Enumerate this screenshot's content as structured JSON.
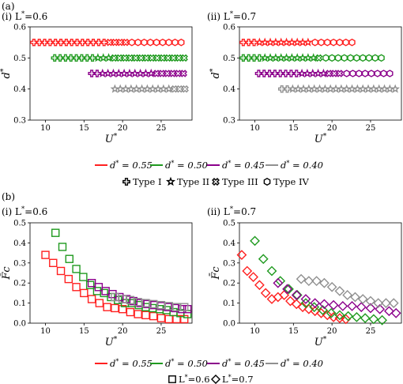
{
  "panel_labels": {
    "a": "(a)",
    "b": "(b)"
  },
  "legend_d": [
    {
      "label": "d* = 0.55",
      "color": "#ff2020"
    },
    {
      "label": "d* = 0.50",
      "color": "#1f9a1f"
    },
    {
      "label": "d* = 0.45",
      "color": "#8b008b"
    },
    {
      "label": "d* = 0.40",
      "color": "#909090"
    }
  ],
  "legend_types": [
    {
      "label": "Type I",
      "marker": "plus"
    },
    {
      "label": "Type II",
      "marker": "star"
    },
    {
      "label": "Type III",
      "marker": "x"
    },
    {
      "label": "Type IV",
      "marker": "hexagon"
    }
  ],
  "legend_L": [
    {
      "label": "L*=0.6",
      "marker": "square"
    },
    {
      "label": "L*=0.7",
      "marker": "diamond"
    }
  ],
  "chart_data": [
    {
      "id": "a-i",
      "type": "scatter",
      "title": "(i) L*=0.6",
      "xlabel": "U*",
      "ylabel": "d*",
      "xlim": [
        8,
        29
      ],
      "ylim": [
        0.3,
        0.6
      ],
      "xticks": [
        10,
        15,
        20,
        25
      ],
      "yticks": [
        0.3,
        0.4,
        0.5,
        0.6
      ],
      "series": [
        {
          "d": 0.55,
          "color": "#ff2020",
          "segments": [
            {
              "marker": "plus",
              "x": [
                8.5,
                9.2,
                9.9,
                10.6,
                11.3,
                12.0,
                12.7,
                13.4,
                14.1,
                14.8,
                15.5,
                16.2,
                16.9,
                17.6
              ]
            },
            {
              "marker": "x",
              "x": [
                18.3,
                19.0,
                19.7,
                20.4
              ]
            },
            {
              "marker": "hexagon",
              "x": [
                21.2,
                22.0,
                22.8,
                23.6,
                24.4,
                25.2,
                26.0,
                26.8,
                27.6
              ]
            }
          ]
        },
        {
          "d": 0.5,
          "color": "#1f9a1f",
          "segments": [
            {
              "marker": "plus",
              "x": [
                11.2,
                11.9,
                12.6,
                13.3,
                14.0,
                14.7,
                15.4,
                16.1
              ]
            },
            {
              "marker": "star",
              "x": [
                16.8,
                17.5,
                18.2
              ]
            },
            {
              "marker": "x",
              "x": [
                18.9,
                19.6,
                20.3,
                21.0,
                21.7,
                22.4,
                23.1,
                23.8,
                24.5,
                25.2,
                25.9,
                26.6,
                27.3,
                28.0
              ]
            }
          ]
        },
        {
          "d": 0.45,
          "color": "#8b008b",
          "segments": [
            {
              "marker": "plus",
              "x": [
                16.0,
                16.7
              ]
            },
            {
              "marker": "star",
              "x": [
                17.4,
                18.1,
                18.8,
                19.5,
                20.2,
                20.9,
                21.6,
                22.3,
                23.0,
                23.7
              ]
            },
            {
              "marker": "x",
              "x": [
                24.4,
                25.1,
                25.8,
                26.5,
                27.2,
                27.9
              ]
            }
          ]
        },
        {
          "d": 0.4,
          "color": "#909090",
          "segments": [
            {
              "marker": "star",
              "x": [
                19.0,
                19.7,
                20.4,
                21.1,
                21.8,
                22.5,
                23.2,
                23.9,
                24.6,
                25.3,
                26.0
              ]
            },
            {
              "marker": "x",
              "x": [
                26.7,
                27.4,
                28.1
              ]
            }
          ]
        }
      ]
    },
    {
      "id": "a-ii",
      "type": "scatter",
      "title": "(ii) L*=0.7",
      "xlabel": "U*",
      "ylabel": "d*",
      "xlim": [
        8,
        29
      ],
      "ylim": [
        0.3,
        0.6
      ],
      "xticks": [
        10,
        15,
        20,
        25
      ],
      "yticks": [
        0.3,
        0.4,
        0.5,
        0.6
      ],
      "series": [
        {
          "d": 0.55,
          "color": "#ff2020",
          "segments": [
            {
              "marker": "plus",
              "x": [
                8.5,
                9.2,
                9.9
              ]
            },
            {
              "marker": "star",
              "x": [
                10.6,
                11.3,
                12.0,
                12.7,
                13.4,
                14.1,
                14.8,
                15.5,
                16.2,
                16.9
              ]
            },
            {
              "marker": "hexagon",
              "x": [
                17.8,
                18.6,
                19.4,
                20.2,
                21.0,
                21.8,
                22.6
              ]
            }
          ]
        },
        {
          "d": 0.5,
          "color": "#1f9a1f",
          "segments": [
            {
              "marker": "plus",
              "x": [
                8.5,
                9.2,
                9.9,
                10.6
              ]
            },
            {
              "marker": "star",
              "x": [
                11.3,
                12.0,
                12.7,
                13.4,
                14.1,
                14.8,
                15.5,
                16.2,
                16.9,
                17.6
              ]
            },
            {
              "marker": "x",
              "x": [
                18.3
              ]
            },
            {
              "marker": "hexagon",
              "x": [
                19.2,
                20.0,
                20.8,
                21.6,
                22.4,
                23.2,
                24.0,
                24.8,
                25.6,
                26.4
              ]
            }
          ]
        },
        {
          "d": 0.45,
          "color": "#8b008b",
          "segments": [
            {
              "marker": "plus",
              "x": [
                10.5,
                11.2,
                11.9,
                12.6,
                13.3,
                14.0,
                14.7,
                15.4
              ]
            },
            {
              "marker": "star",
              "x": [
                16.1,
                16.8,
                17.5,
                18.2,
                18.9
              ]
            },
            {
              "marker": "x",
              "x": [
                19.6,
                20.3,
                21.0
              ]
            },
            {
              "marker": "hexagon",
              "x": [
                21.9,
                22.7,
                23.5,
                24.3,
                25.1,
                25.9,
                26.7,
                27.5
              ]
            }
          ]
        },
        {
          "d": 0.4,
          "color": "#909090",
          "segments": [
            {
              "marker": "plus",
              "x": [
                13.5,
                14.2
              ]
            },
            {
              "marker": "star",
              "x": [
                14.9,
                15.6,
                16.3,
                17.0,
                17.7,
                18.4,
                19.1,
                19.8,
                20.5,
                21.2,
                21.9,
                22.6,
                23.3,
                24.0,
                24.7,
                25.4,
                26.1,
                26.8,
                27.5,
                28.2
              ]
            }
          ]
        }
      ]
    },
    {
      "id": "b-i",
      "type": "scatter",
      "title": "(i) L*=0.6",
      "xlabel": "U*",
      "ylabel": "F̄c",
      "marker": "square",
      "xlim": [
        8,
        29
      ],
      "ylim": [
        0,
        0.5
      ],
      "xticks": [
        10,
        15,
        20,
        25
      ],
      "yticks": [
        0.0,
        0.1,
        0.2,
        0.3,
        0.4,
        0.5
      ],
      "series": [
        {
          "d": 0.55,
          "color": "#ff2020",
          "x": [
            10.0,
            11.0,
            12.0,
            13.0,
            14.0,
            15.0,
            16.0,
            17.0,
            18.0,
            19.0,
            20.0,
            21.0,
            22.0,
            23.0,
            24.0,
            25.0,
            26.0,
            27.0,
            28.0
          ],
          "y": [
            0.34,
            0.3,
            0.26,
            0.22,
            0.18,
            0.15,
            0.12,
            0.1,
            0.08,
            0.075,
            0.07,
            0.055,
            0.045,
            0.04,
            0.035,
            0.025,
            0.02,
            0.02,
            0.02
          ]
        },
        {
          "d": 0.5,
          "color": "#1f9a1f",
          "x": [
            11.3,
            12.2,
            13.1,
            14.0,
            14.9,
            15.8,
            16.7,
            17.6,
            18.5,
            19.4,
            20.3,
            21.2,
            22.1,
            23.0,
            23.9,
            24.8,
            25.7,
            26.6,
            27.5,
            28.4
          ],
          "y": [
            0.45,
            0.38,
            0.32,
            0.27,
            0.23,
            0.19,
            0.16,
            0.15,
            0.13,
            0.115,
            0.1,
            0.1,
            0.09,
            0.08,
            0.075,
            0.07,
            0.065,
            0.055,
            0.05,
            0.045
          ]
        },
        {
          "d": 0.45,
          "color": "#8b008b",
          "x": [
            16.0,
            16.9,
            17.8,
            18.7,
            19.6,
            20.5,
            21.4,
            22.3,
            23.2,
            24.1,
            25.0,
            25.9,
            26.8,
            27.7,
            28.4
          ],
          "y": [
            0.2,
            0.18,
            0.16,
            0.145,
            0.13,
            0.12,
            0.11,
            0.1,
            0.095,
            0.09,
            0.085,
            0.08,
            0.075,
            0.07,
            0.07
          ]
        },
        {
          "d": 0.4,
          "color": "#909090",
          "x": [
            19.0,
            20.0,
            21.0,
            22.0,
            23.0,
            24.0,
            25.0,
            26.0,
            27.0,
            28.0
          ],
          "y": [
            0.13,
            0.12,
            0.115,
            0.105,
            0.1,
            0.095,
            0.09,
            0.085,
            0.08,
            0.08
          ]
        }
      ]
    },
    {
      "id": "b-ii",
      "type": "scatter",
      "title": "(ii) L*=0.7",
      "xlabel": "U*",
      "ylabel": "F̄c",
      "marker": "diamond",
      "xlim": [
        8,
        29
      ],
      "ylim": [
        0,
        0.5
      ],
      "xticks": [
        10,
        15,
        20,
        25
      ],
      "yticks": [
        0.0,
        0.1,
        0.2,
        0.3,
        0.4,
        0.5
      ],
      "series": [
        {
          "d": 0.55,
          "color": "#ff2020",
          "x": [
            8.3,
            9.0,
            9.8,
            10.6,
            11.4,
            12.2,
            13.0,
            13.8,
            14.6,
            15.4,
            16.2,
            17.0,
            17.8,
            18.6,
            19.4,
            20.2,
            21.0,
            21.8
          ],
          "y": [
            0.34,
            0.26,
            0.23,
            0.19,
            0.15,
            0.12,
            0.13,
            0.14,
            0.11,
            0.095,
            0.08,
            0.07,
            0.06,
            0.05,
            0.04,
            0.03,
            0.025,
            0.02
          ]
        },
        {
          "d": 0.5,
          "color": "#1f9a1f",
          "x": [
            10.0,
            11.1,
            12.2,
            13.3,
            14.4,
            15.5,
            16.6,
            17.7,
            18.8,
            19.9,
            21.0,
            22.1,
            23.2,
            24.3,
            25.4,
            26.5
          ],
          "y": [
            0.41,
            0.32,
            0.26,
            0.21,
            0.17,
            0.14,
            0.1,
            0.08,
            0.065,
            0.05,
            0.04,
            0.035,
            0.03,
            0.025,
            0.02,
            0.015
          ]
        },
        {
          "d": 0.45,
          "color": "#8b008b",
          "x": [
            13.0,
            14.2,
            15.4,
            16.6,
            17.8,
            19.0,
            20.2,
            21.4,
            22.6,
            23.8,
            25.0,
            26.2,
            27.4,
            28.3
          ],
          "y": [
            0.2,
            0.17,
            0.14,
            0.12,
            0.1,
            0.095,
            0.09,
            0.085,
            0.085,
            0.08,
            0.075,
            0.07,
            0.06,
            0.05
          ]
        },
        {
          "d": 0.4,
          "color": "#909090",
          "x": [
            16.0,
            17.0,
            18.0,
            19.0,
            20.0,
            21.0,
            22.0,
            23.0,
            24.0,
            25.0,
            26.0,
            27.0,
            28.0
          ],
          "y": [
            0.22,
            0.21,
            0.21,
            0.2,
            0.18,
            0.16,
            0.14,
            0.13,
            0.12,
            0.11,
            0.1,
            0.1,
            0.1
          ]
        }
      ]
    }
  ]
}
